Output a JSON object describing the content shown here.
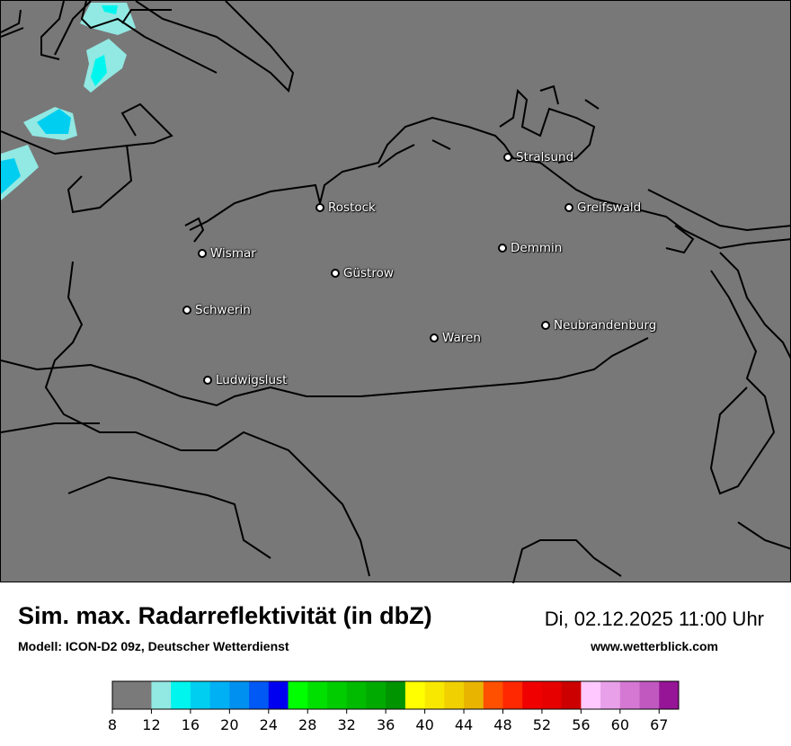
{
  "header": {
    "title": "Sim. max. Radarreflektivität (in dbZ)",
    "model": "Modell: ICON-D2 09z, Deutscher Wetterdienst",
    "datetime": "Di, 02.12.2025 11:00 Uhr",
    "website": "www.wetterblick.com"
  },
  "map": {
    "background_color": "#787878",
    "cities": [
      "Stralsund",
      "Rostock",
      "Greifswald",
      "Demmin",
      "Wismar",
      "Güstrow",
      "Schwerin",
      "Neubrandenburg",
      "Waren",
      "Ludwigslust"
    ]
  },
  "legend": {
    "unit": "dbZ",
    "colors": [
      "#7a7a7a",
      "#92e8e2",
      "#00f5ee",
      "#00cef0",
      "#00b0f5",
      "#0090f0",
      "#0058f5",
      "#0000f0",
      "#00ff00",
      "#00e000",
      "#00cc00",
      "#00bb00",
      "#00aa00",
      "#009400",
      "#ffff00",
      "#f8e800",
      "#f0d000",
      "#e8b400",
      "#ff5000",
      "#ff2800",
      "#f00000",
      "#e60000",
      "#cc0000",
      "#ffc8ff",
      "#e8a0e8",
      "#d478d4",
      "#c058c0",
      "#961496"
    ],
    "ticks": [
      "8",
      "12",
      "16",
      "20",
      "24",
      "28",
      "32",
      "36",
      "40",
      "44",
      "48",
      "52",
      "56",
      "60",
      "67"
    ]
  }
}
